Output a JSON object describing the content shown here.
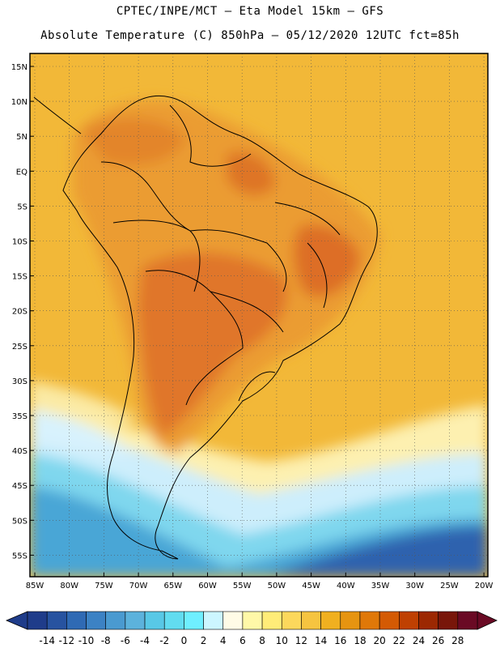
{
  "header": {
    "line1": "CPTEC/INPE/MCT –  Eta Model 15km – GFS",
    "line2": "Absolute Temperature (C) 850hPa – 05/12/2020 12UTC fct=85h"
  },
  "lat_ticks": [
    "15N",
    "10N",
    "5N",
    "EQ",
    "5S",
    "10S",
    "15S",
    "20S",
    "25S",
    "30S",
    "35S",
    "40S",
    "45S",
    "50S",
    "55S"
  ],
  "lon_ticks": [
    "85W",
    "80W",
    "75W",
    "70W",
    "65W",
    "60W",
    "55W",
    "50W",
    "45W",
    "40W",
    "35W",
    "30W",
    "25W",
    "20W"
  ],
  "colorbar": {
    "labels": [
      "-14",
      "-12",
      "-10",
      "-8",
      "-6",
      "-4",
      "-2",
      "0",
      "2",
      "4",
      "6",
      "8",
      "10",
      "12",
      "14",
      "16",
      "18",
      "20",
      "22",
      "24",
      "26",
      "28"
    ],
    "colors": [
      "#1f3c8a",
      "#2753a0",
      "#2f6ab4",
      "#3c82c4",
      "#4a9ad0",
      "#5cb2dc",
      "#58c8e6",
      "#62dcf0",
      "#6fefff",
      "#ccf6ff",
      "#fffbe6",
      "#fff8a8",
      "#ffec78",
      "#fcd85c",
      "#f6c440",
      "#f0b020",
      "#e69410",
      "#e07808",
      "#d45a04",
      "#bf4002",
      "#9c2802",
      "#78160a",
      "#6a0a24"
    ]
  },
  "palette": {
    "warm": "#eda536",
    "hot": "#e67a26",
    "hotter": "#d8601c",
    "sea": "#f3b93a",
    "pale": "#fdf2b8",
    "cold": "#cfefff",
    "colder": "#7ed8ee",
    "coldest": "#3f8fc8",
    "deep": "#2a5aa6"
  }
}
